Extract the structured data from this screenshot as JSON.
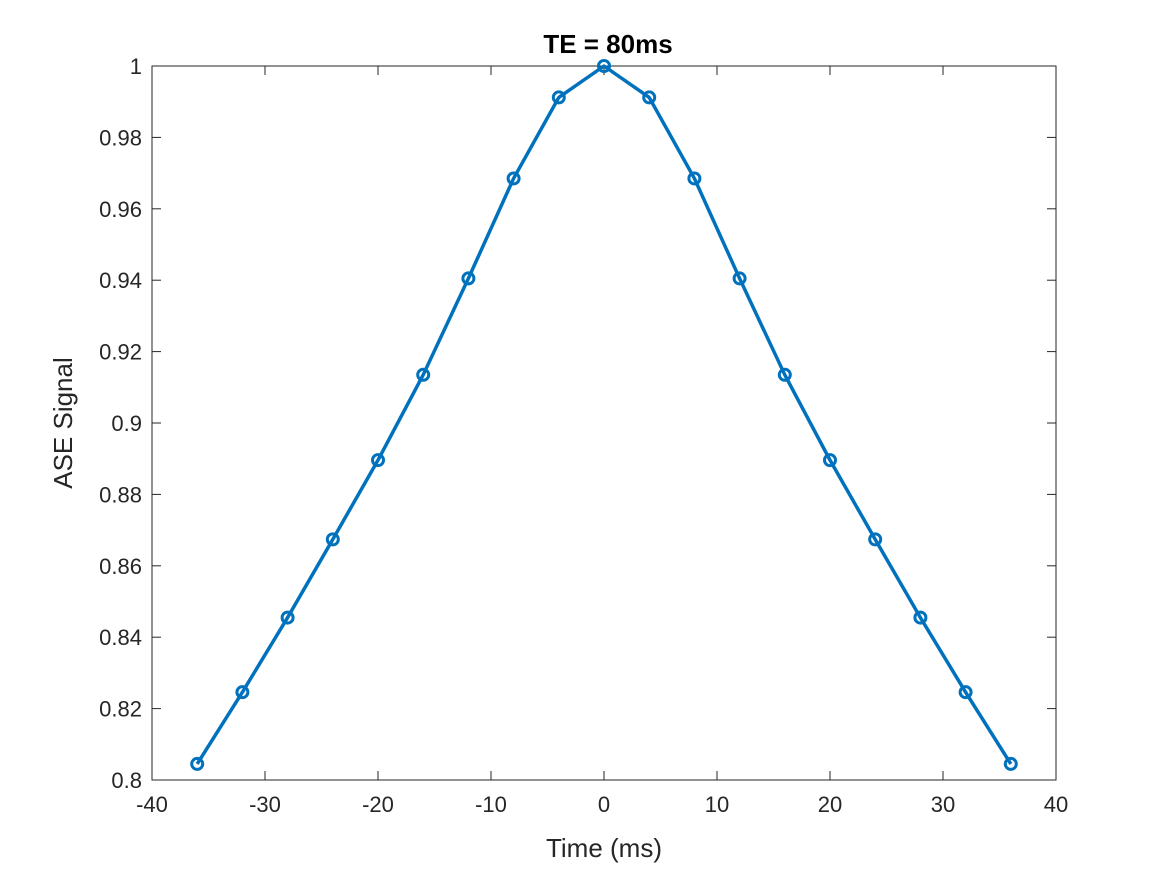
{
  "chart_data": {
    "type": "line",
    "title": "TE = 80ms",
    "xlabel": "Time (ms)",
    "ylabel": "ASE Signal",
    "xlim": [
      -40,
      40
    ],
    "ylim": [
      0.8,
      1.0
    ],
    "x_ticks": [
      -40,
      -30,
      -20,
      -10,
      0,
      10,
      20,
      30,
      40
    ],
    "x_tick_labels": [
      "-40",
      "-30",
      "-20",
      "-10",
      "0",
      "10",
      "20",
      "30",
      "40"
    ],
    "y_ticks": [
      0.8,
      0.82,
      0.84,
      0.86,
      0.88,
      0.9,
      0.92,
      0.94,
      0.96,
      0.98,
      1.0
    ],
    "y_tick_labels": [
      "0.8",
      "0.82",
      "0.84",
      "0.86",
      "0.88",
      "0.9",
      "0.92",
      "0.94",
      "0.96",
      "0.98",
      "1"
    ],
    "grid": false,
    "legend": "none",
    "marker": "circle",
    "series": [
      {
        "color": "#0072BD",
        "x": [
          -36,
          -32,
          -28,
          -24,
          -20,
          -16,
          -12,
          -8,
          -4,
          0,
          4,
          8,
          12,
          16,
          20,
          24,
          28,
          32,
          36
        ],
        "y": [
          0.8045,
          0.8246,
          0.8455,
          0.8674,
          0.8896,
          0.9135,
          0.9405,
          0.9685,
          0.9912,
          1.0,
          0.9912,
          0.9685,
          0.9405,
          0.9135,
          0.8896,
          0.8674,
          0.8455,
          0.8246,
          0.8045
        ]
      }
    ]
  }
}
